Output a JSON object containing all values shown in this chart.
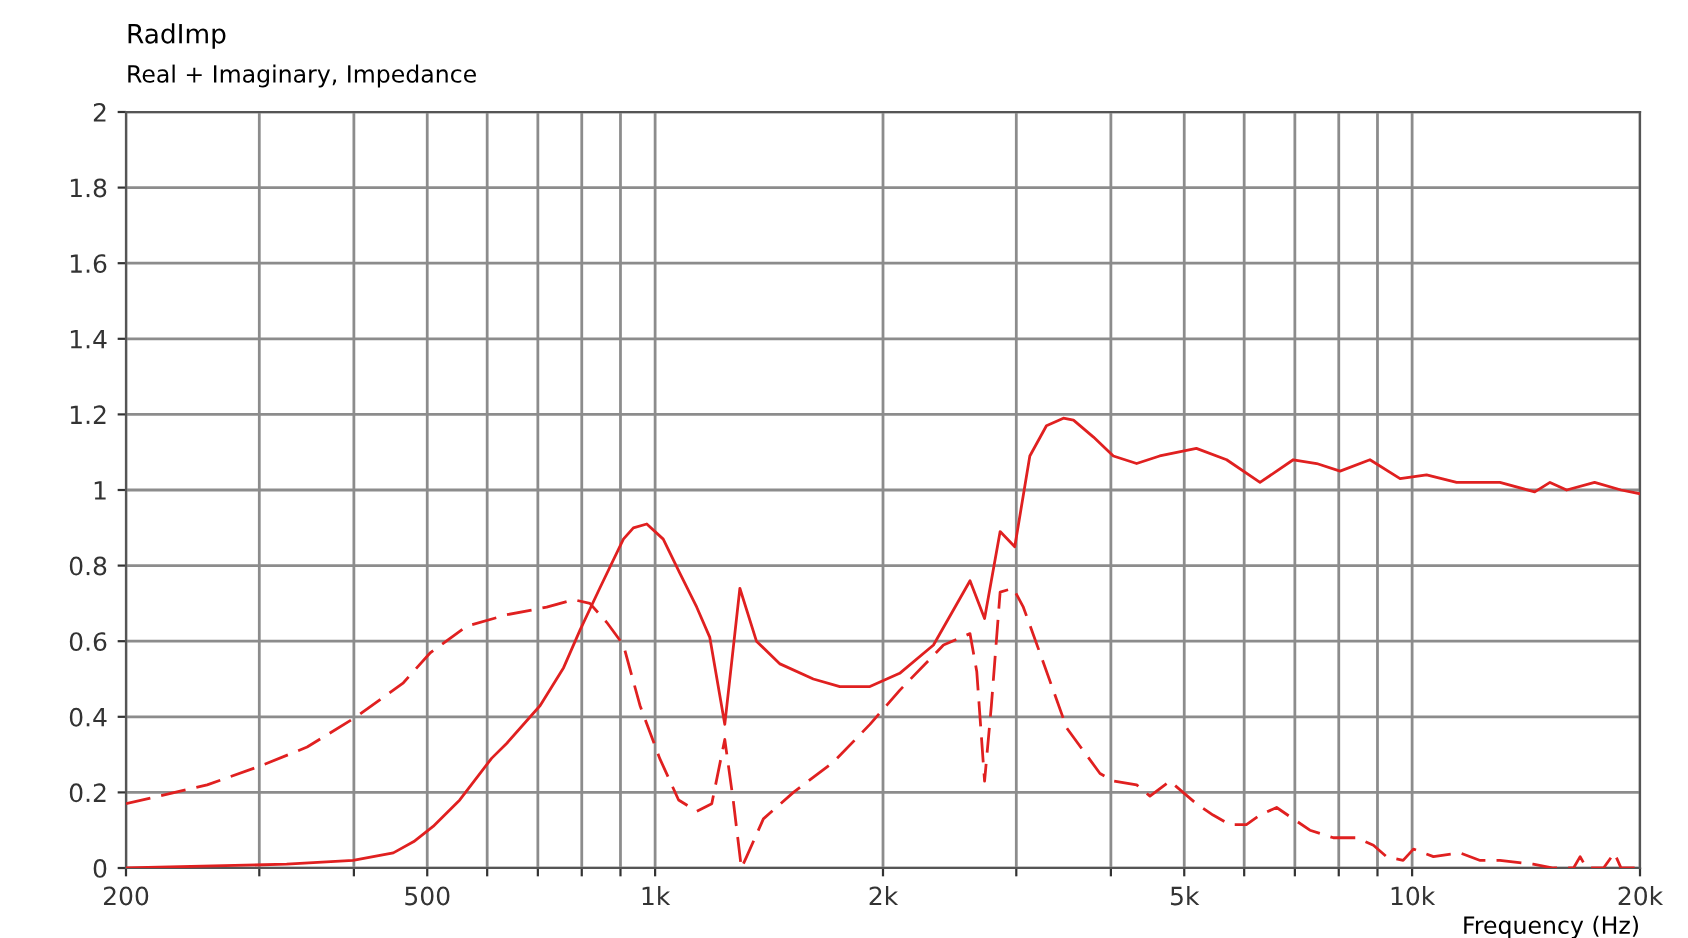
{
  "chart_data": {
    "type": "line",
    "title": "RadImp",
    "subtitle": "Real + Imaginary, Impedance",
    "xlabel": "Frequency (Hz)",
    "log": "x",
    "grid": true,
    "marker": "none",
    "xlim": [
      200,
      20000
    ],
    "ylim": [
      0,
      2
    ],
    "xticks": [
      200,
      {
        "value": 300,
        "label": null
      },
      {
        "value": 400,
        "label": null
      },
      500,
      {
        "value": 600,
        "label": null
      },
      {
        "value": 700,
        "label": null
      },
      {
        "value": 800,
        "label": null
      },
      {
        "value": 900,
        "label": null
      },
      {
        "value": 1000,
        "label": "1k"
      },
      {
        "value": 2000,
        "label": "2k"
      },
      {
        "value": 3000,
        "label": null
      },
      {
        "value": 4000,
        "label": null
      },
      {
        "value": 5000,
        "label": "5k"
      },
      {
        "value": 6000,
        "label": null
      },
      {
        "value": 7000,
        "label": null
      },
      {
        "value": 8000,
        "label": null
      },
      {
        "value": 9000,
        "label": null
      },
      {
        "value": 10000,
        "label": "10k"
      },
      {
        "value": 20000,
        "label": "20k"
      }
    ],
    "yticks": [
      0,
      0.2,
      0.4,
      0.6,
      0.8,
      1,
      1.2,
      1.4,
      1.6,
      1.8,
      2
    ],
    "series": [
      {
        "color": "#e02020",
        "line_style": "solid",
        "x": [
          200,
          326,
          399,
          451,
          480,
          509,
          552,
          608,
          637,
          705,
          757,
          796,
          845,
          908,
          936,
          975,
          1025,
          1078,
          1135,
          1181,
          1236,
          1294,
          1361,
          1462,
          1618,
          1754,
          1922,
          2104,
          2332,
          2606,
          2724,
          2856,
          2986,
          3126,
          3288,
          3462,
          3570,
          3794,
          4030,
          4326,
          4640,
          5188,
          5688,
          6296,
          6966,
          7480,
          8032,
          8796,
          9640,
          10450,
          11450,
          13060,
          14520,
          15210,
          16000,
          17420,
          18880,
          20000
        ],
        "values": [
          0,
          0.01,
          0.02,
          0.04,
          0.07,
          0.11,
          0.18,
          0.29,
          0.33,
          0.43,
          0.53,
          0.63,
          0.74,
          0.87,
          0.9,
          0.91,
          0.87,
          0.78,
          0.69,
          0.61,
          0.38,
          0.74,
          0.6,
          0.54,
          0.5,
          0.48,
          0.48,
          0.515,
          0.59,
          0.76,
          0.66,
          0.89,
          0.85,
          1.09,
          1.17,
          1.19,
          1.185,
          1.14,
          1.09,
          1.07,
          1.09,
          1.11,
          1.08,
          1.02,
          1.08,
          1.07,
          1.05,
          1.08,
          1.03,
          1.04,
          1.02,
          1.02,
          0.995,
          1.02,
          1.0,
          1.02,
          1.0,
          0.99
        ]
      },
      {
        "color": "#e02020",
        "line_style": "dashed",
        "x": [
          200,
          256,
          301,
          347,
          403,
          465,
          505,
          564,
          637,
          719,
          780,
          820,
          863,
          908,
          955,
          1014,
          1074,
          1135,
          1188,
          1236,
          1268,
          1300,
          1321,
          1390,
          1523,
          1720,
          1922,
          2104,
          2404,
          2606,
          2660,
          2724,
          2781,
          2856,
          2973,
          3065,
          3222,
          3498,
          3870,
          4030,
          4326,
          4505,
          4786,
          5188,
          5458,
          5741,
          6041,
          6296,
          6622,
          6966,
          7328,
          7870,
          8450,
          8890,
          9250,
          9730,
          10040,
          10670,
          11560,
          12300,
          13060,
          14450,
          15370,
          16340,
          16670,
          17000,
          17900,
          18500,
          18880,
          20000
        ],
        "values": [
          0.17,
          0.22,
          0.27,
          0.32,
          0.4,
          0.49,
          0.57,
          0.64,
          0.67,
          0.69,
          0.71,
          0.7,
          0.65,
          0.59,
          0.43,
          0.29,
          0.18,
          0.15,
          0.17,
          0.34,
          0.18,
          0.0,
          0.03,
          0.13,
          0.2,
          0.28,
          0.38,
          0.47,
          0.59,
          0.62,
          0.52,
          0.23,
          0.43,
          0.73,
          0.74,
          0.69,
          0.57,
          0.37,
          0.25,
          0.23,
          0.22,
          0.19,
          0.23,
          0.17,
          0.14,
          0.115,
          0.115,
          0.14,
          0.16,
          0.13,
          0.1,
          0.08,
          0.08,
          0.06,
          0.03,
          0.02,
          0.05,
          0.03,
          0.04,
          0.02,
          0.02,
          0.01,
          0,
          0,
          0.03,
          0,
          0,
          0.04,
          0,
          0
        ]
      }
    ]
  }
}
